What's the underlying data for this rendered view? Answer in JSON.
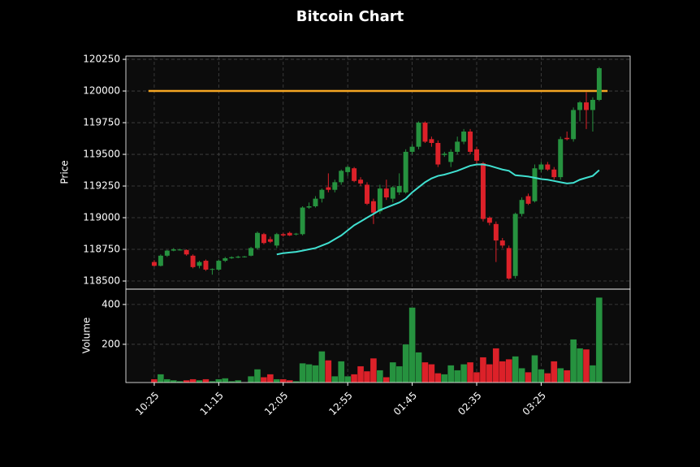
{
  "chart_data": {
    "type": "candlestick",
    "title": "Bitcoin Chart",
    "ylabel": "Price",
    "volume_ylabel": "Volume",
    "ylim": [
      118436,
      120276
    ],
    "yticks": [
      118500,
      118750,
      119000,
      119250,
      119500,
      119750,
      120000,
      120250
    ],
    "volume_ylim": [
      8,
      477
    ],
    "volume_yticks": [
      200,
      400
    ],
    "xlim": [
      -4.4,
      73.8
    ],
    "xticks": [
      {
        "value": 0,
        "label": "10:25"
      },
      {
        "value": 10,
        "label": "11:15"
      },
      {
        "value": 20,
        "label": "12:05"
      },
      {
        "value": 30,
        "label": "12:55"
      },
      {
        "value": 40,
        "label": "01:45"
      },
      {
        "value": 50,
        "label": "02:35"
      },
      {
        "value": 60,
        "label": "03:25"
      }
    ],
    "grid": true,
    "up_color": "#26923f",
    "down_color": "#dc2129",
    "ohlc": [
      [
        118650,
        118665,
        118615,
        118620
      ],
      [
        118620,
        118710,
        118615,
        118700
      ],
      [
        118700,
        118745,
        118690,
        118740
      ],
      [
        118740,
        118760,
        118735,
        118750
      ],
      [
        118745,
        118755,
        118740,
        118748
      ],
      [
        118745,
        118750,
        118700,
        118710
      ],
      [
        118700,
        118710,
        118600,
        118610
      ],
      [
        118620,
        118660,
        118600,
        118650
      ],
      [
        118660,
        118670,
        118580,
        118590
      ],
      [
        118590,
        118600,
        118550,
        118595
      ],
      [
        118590,
        118670,
        118580,
        118660
      ],
      [
        118660,
        118690,
        118650,
        118680
      ],
      [
        118680,
        118695,
        118675,
        118688
      ],
      [
        118685,
        118700,
        118680,
        118692
      ],
      [
        118690,
        118698,
        118685,
        118694
      ],
      [
        118700,
        118770,
        118695,
        118760
      ],
      [
        118760,
        118890,
        118750,
        118880
      ],
      [
        118870,
        118880,
        118790,
        118800
      ],
      [
        118830,
        118850,
        118800,
        118810
      ],
      [
        118780,
        118880,
        118760,
        118870
      ],
      [
        118870,
        118880,
        118850,
        118860
      ],
      [
        118880,
        118890,
        118855,
        118860
      ],
      [
        118868,
        118880,
        118860,
        118874
      ],
      [
        118870,
        119090,
        118860,
        119080
      ],
      [
        119080,
        119120,
        119070,
        119090
      ],
      [
        119090,
        119170,
        119080,
        119150
      ],
      [
        119150,
        119230,
        119120,
        119220
      ],
      [
        119240,
        119350,
        119200,
        119220
      ],
      [
        119220,
        119300,
        119200,
        119280
      ],
      [
        119280,
        119380,
        119260,
        119370
      ],
      [
        119360,
        119410,
        119330,
        119400
      ],
      [
        119390,
        119400,
        119280,
        119290
      ],
      [
        119300,
        119320,
        119250,
        119270
      ],
      [
        119260,
        119280,
        119100,
        119110
      ],
      [
        119130,
        119150,
        118950,
        119040
      ],
      [
        119050,
        119260,
        119030,
        119230
      ],
      [
        119230,
        119300,
        119140,
        119160
      ],
      [
        119150,
        119250,
        119120,
        119240
      ],
      [
        119200,
        119350,
        119180,
        119250
      ],
      [
        119200,
        119540,
        119190,
        119520
      ],
      [
        119520,
        119580,
        119500,
        119560
      ],
      [
        119560,
        119760,
        119540,
        119750
      ],
      [
        119750,
        119760,
        119590,
        119600
      ],
      [
        119620,
        119640,
        119560,
        119590
      ],
      [
        119590,
        119610,
        119400,
        119420
      ],
      [
        119495,
        119520,
        119480,
        119505
      ],
      [
        119440,
        119540,
        119400,
        119520
      ],
      [
        119520,
        119640,
        119500,
        119600
      ],
      [
        119600,
        119700,
        119580,
        119680
      ],
      [
        119680,
        119700,
        119500,
        119520
      ],
      [
        119540,
        119560,
        119420,
        119450
      ],
      [
        119430,
        119440,
        118970,
        118990
      ],
      [
        119000,
        119010,
        118940,
        118960
      ],
      [
        118950,
        118970,
        118650,
        118820
      ],
      [
        118820,
        118840,
        118760,
        118780
      ],
      [
        118760,
        118780,
        118510,
        118520
      ],
      [
        118540,
        119040,
        118520,
        119030
      ],
      [
        119030,
        119160,
        119010,
        119140
      ],
      [
        119170,
        119190,
        119100,
        119110
      ],
      [
        119130,
        119420,
        119120,
        119390
      ],
      [
        119380,
        119440,
        119360,
        119420
      ],
      [
        119420,
        119440,
        119370,
        119380
      ],
      [
        119380,
        119400,
        119300,
        119320
      ],
      [
        119320,
        119640,
        119300,
        119620
      ],
      [
        119630,
        119680,
        119610,
        119620
      ],
      [
        119620,
        119870,
        119600,
        119850
      ],
      [
        119850,
        119920,
        119760,
        119910
      ],
      [
        119910,
        119990,
        119700,
        119850
      ],
      [
        119850,
        119950,
        119680,
        119930
      ],
      [
        119930,
        120190,
        119920,
        120180
      ]
    ],
    "volume": [
      25,
      50,
      25,
      20,
      15,
      20,
      25,
      20,
      25,
      15,
      25,
      30,
      15,
      20,
      10,
      40,
      75,
      35,
      50,
      25,
      25,
      20,
      15,
      105,
      100,
      95,
      165,
      120,
      40,
      115,
      40,
      50,
      90,
      65,
      130,
      70,
      35,
      110,
      90,
      200,
      385,
      160,
      110,
      100,
      55,
      50,
      95,
      70,
      100,
      110,
      60,
      135,
      100,
      180,
      115,
      125,
      140,
      80,
      60,
      145,
      75,
      55,
      115,
      80,
      70,
      225,
      180,
      175,
      95,
      435
    ],
    "ma": {
      "color": "#40e0d0",
      "values": [
        null,
        null,
        null,
        null,
        null,
        null,
        null,
        null,
        null,
        null,
        null,
        null,
        null,
        null,
        null,
        null,
        null,
        null,
        null,
        118710,
        118720,
        118725,
        118730,
        118740,
        118750,
        118760,
        118780,
        118800,
        118830,
        118860,
        118900,
        118940,
        118970,
        119000,
        119030,
        119060,
        119080,
        119100,
        119120,
        119150,
        119200,
        119240,
        119280,
        119310,
        119330,
        119340,
        119355,
        119370,
        119390,
        119410,
        119420,
        119420,
        119410,
        119395,
        119380,
        119370,
        119335,
        119330,
        119325,
        119315,
        119305,
        119300,
        119290,
        119280,
        119270,
        119275,
        119300,
        119315,
        119330,
        119375
      ]
    },
    "hline": {
      "value": 120000,
      "color": "#f5a623",
      "start": -0.9,
      "end": 70.3
    }
  }
}
